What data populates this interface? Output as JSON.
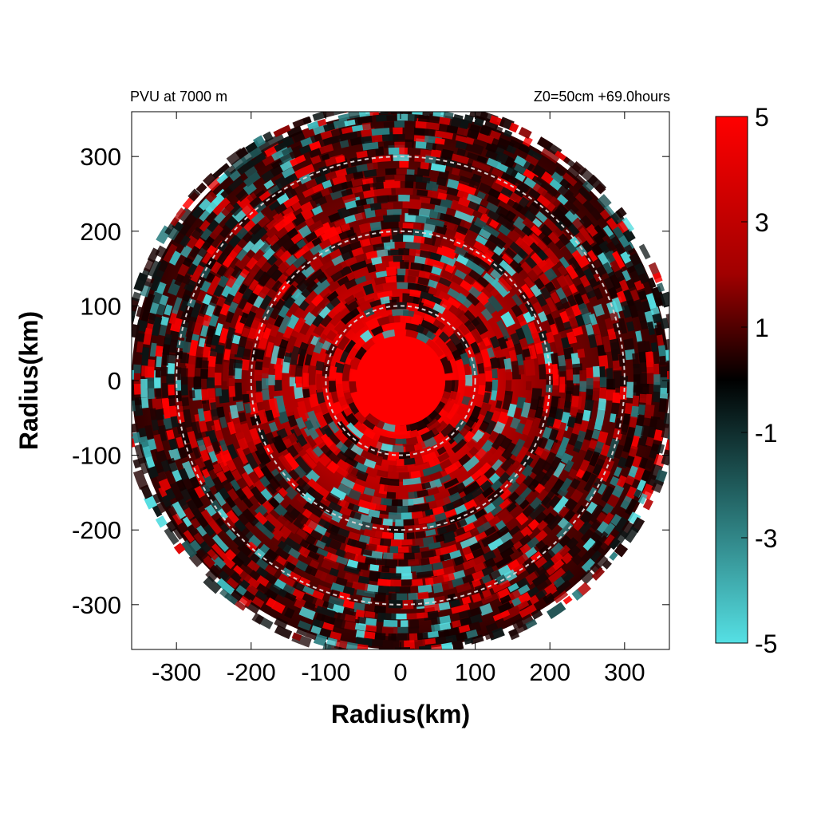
{
  "chart_data": {
    "type": "heatmap",
    "title_left": "PVU at  7000 m",
    "title_right": "Z0=50cm  +69.0hours",
    "xlabel": "Radius(km)",
    "ylabel": "Radius(km)",
    "xlim": [
      -360,
      360
    ],
    "ylim": [
      -360,
      360
    ],
    "x_ticks": [
      "-300",
      "-200",
      "-100",
      "0",
      "100",
      "200",
      "300"
    ],
    "y_ticks": [
      "300",
      "200",
      "100",
      "0",
      "-100",
      "-200",
      "-300"
    ],
    "domain_radius_km": 360,
    "range_rings_km": [
      100,
      200,
      300
    ],
    "colorbar": {
      "range": [
        -5,
        5
      ],
      "ticks": [
        "5",
        "3",
        "1",
        "-1",
        "-3",
        "-5"
      ],
      "colors": {
        "min": "#55dde0",
        "mid": "#000000",
        "max": "#ff0000"
      }
    },
    "field_description_values": {
      "core_radius_km": 60,
      "core_value": 5,
      "background_value": 1.5
    }
  }
}
